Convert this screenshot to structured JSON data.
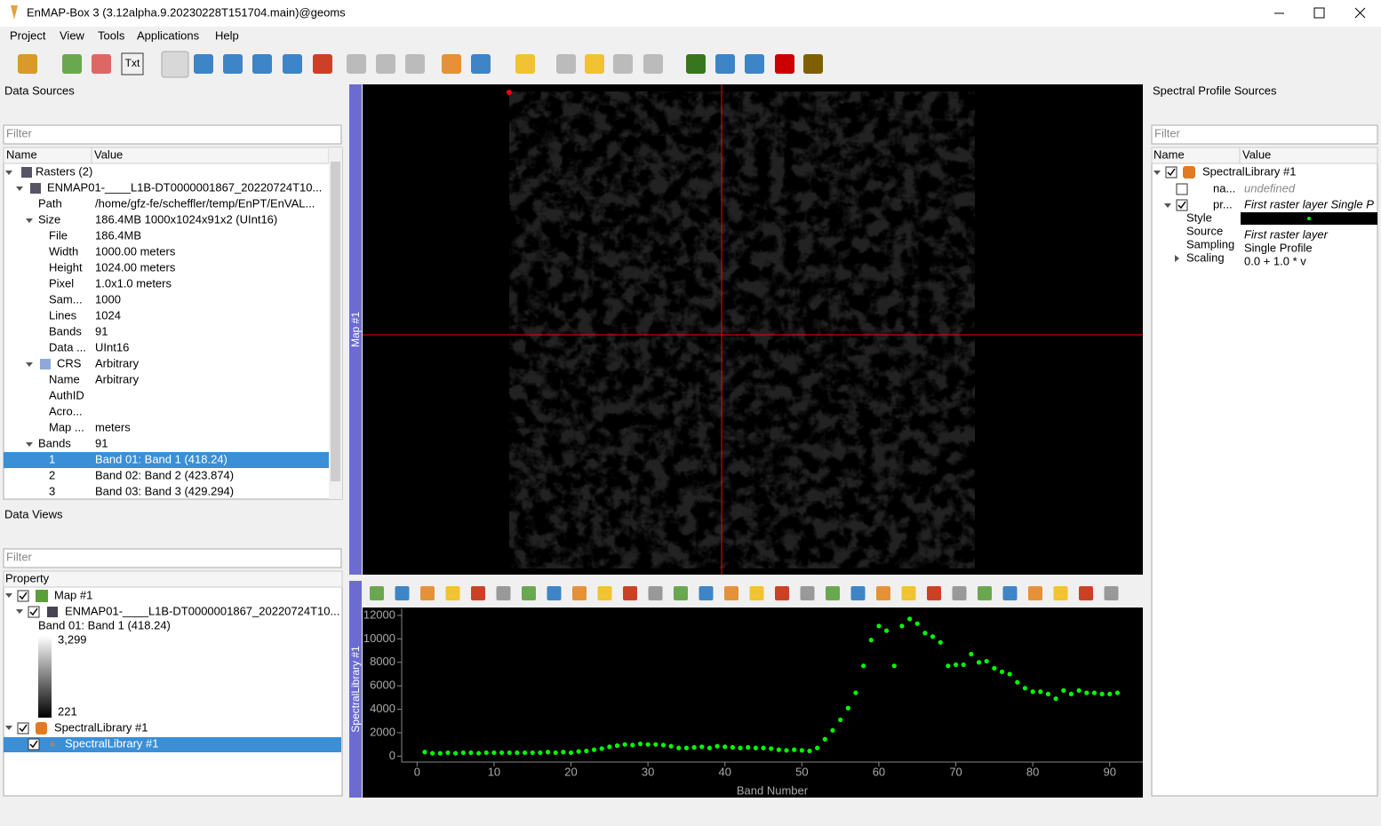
{
  "window": {
    "title": "EnMAP-Box 3 (3.12alpha.9.20230228T151704.main)@geoms"
  },
  "menu": [
    "Project",
    "View",
    "Tools",
    "Applications",
    "Help"
  ],
  "toolbar": {
    "txt_icon": "Txt"
  },
  "data_sources": {
    "title": "Data Sources",
    "filter_placeholder": "Filter",
    "columns": [
      "Name",
      "Value"
    ],
    "selected_row": 18,
    "rows": [
      {
        "name": "Rasters (2)"
      },
      {
        "name": "ENMAP01-____L1B-DT0000001867_20220724T10..."
      },
      {
        "name": "Path",
        "value": "/home/gfz-fe/scheffler/temp/EnPT/EnVAL..."
      },
      {
        "name": "Size",
        "value": "186.4MB 1000x1024x91x2 (UInt16)"
      },
      {
        "name": "File",
        "value": "186.4MB"
      },
      {
        "name": "Width",
        "value": "1000.00 meters"
      },
      {
        "name": "Height",
        "value": "1024.00 meters"
      },
      {
        "name": "Pixel",
        "value": "1.0x1.0 meters"
      },
      {
        "name": "Sam...",
        "value": "1000"
      },
      {
        "name": "Lines",
        "value": "1024"
      },
      {
        "name": "Bands",
        "value": "91"
      },
      {
        "name": "Data ...",
        "value": "UInt16"
      },
      {
        "name": "CRS",
        "value": "Arbitrary"
      },
      {
        "name": "Name",
        "value": "Arbitrary"
      },
      {
        "name": "AuthID"
      },
      {
        "name": "Acro..."
      },
      {
        "name": "Map ...",
        "value": "meters"
      },
      {
        "name": "Bands",
        "value": "91"
      },
      {
        "name": "1",
        "value": "Band 01: Band 1 (418.24)"
      },
      {
        "name": "2",
        "value": "Band 02: Band 2 (423.874)"
      },
      {
        "name": "3",
        "value": "Band 03: Band 3 (429.294)"
      }
    ]
  },
  "data_views": {
    "title": "Data Views",
    "filter_placeholder": "Filter",
    "column": "Property",
    "map": {
      "name": "Map #1",
      "layer": "ENMAP01-____L1B-DT0000001867_20220724T10...",
      "band": "Band 01: Band 1 (418.24)",
      "color_max": "3,299",
      "color_min": "221"
    },
    "speclib": {
      "name": "SpectralLibrary #1",
      "child": "SpectralLibrary #1"
    }
  },
  "map_dock": {
    "title": "Map #1"
  },
  "spectral_dock": {
    "title": "SpectralLibrary #1",
    "plot": {
      "type": "scatter",
      "x_label": "Band Number",
      "color": "#00ff00",
      "x": [
        1,
        2,
        3,
        4,
        5,
        6,
        7,
        8,
        9,
        10,
        11,
        12,
        13,
        14,
        15,
        16,
        17,
        18,
        19,
        20,
        21,
        22,
        23,
        24,
        25,
        26,
        27,
        28,
        29,
        30,
        31,
        32,
        33,
        34,
        35,
        36,
        37,
        38,
        39,
        40,
        41,
        42,
        43,
        44,
        45,
        46,
        47,
        48,
        49,
        50,
        51,
        52,
        53,
        54,
        55,
        56,
        57,
        58,
        59,
        60,
        61,
        62,
        63,
        64,
        65,
        66,
        67,
        68,
        69,
        70,
        71,
        72,
        73,
        74,
        75,
        76,
        77,
        78,
        79,
        80,
        81,
        82,
        83,
        84,
        85,
        86,
        87,
        88,
        89,
        90,
        91
      ],
      "values": [
        350,
        250,
        250,
        300,
        250,
        300,
        300,
        250,
        300,
        300,
        300,
        300,
        300,
        300,
        300,
        300,
        350,
        300,
        350,
        300,
        400,
        450,
        550,
        650,
        800,
        900,
        1000,
        950,
        1050,
        1000,
        1000,
        950,
        850,
        700,
        700,
        750,
        800,
        700,
        850,
        800,
        750,
        700,
        750,
        700,
        700,
        650,
        550,
        500,
        550,
        500,
        450,
        700,
        1450,
        2200,
        3100,
        4100,
        5400,
        7700,
        9900,
        11100,
        10700,
        7700,
        11100,
        11700,
        11300,
        10500,
        10200,
        9700,
        7700,
        7800,
        7800,
        8700,
        8000,
        8100,
        7500,
        7200,
        7000,
        6300,
        5800,
        5500,
        5500,
        5300,
        4900,
        5600,
        5300,
        5600,
        5400,
        5400,
        5300,
        5300,
        5400
      ],
      "xlim": [
        -2,
        94.3
      ],
      "ylim": [
        -500,
        12600
      ],
      "xticks": [
        0,
        10,
        20,
        30,
        40,
        50,
        60,
        70,
        80,
        90
      ],
      "yticks": [
        0,
        2000,
        4000,
        6000,
        8000,
        10000,
        12000
      ]
    }
  },
  "profile_sources": {
    "title": "Spectral Profile Sources",
    "filter_placeholder": "Filter",
    "columns": [
      "Name",
      "Value"
    ],
    "rows": [
      {
        "name": "SpectralLibrary #1"
      },
      {
        "name": "na...",
        "value": "undefined"
      },
      {
        "name": "pr...",
        "value": "First raster layer Single P"
      },
      {
        "name": "Style"
      },
      {
        "name": "Source",
        "value": "First raster layer"
      },
      {
        "name": "Sampling",
        "value": "Single Profile"
      },
      {
        "name": "Scaling",
        "value": "0.0 + 1.0 * v"
      }
    ]
  }
}
